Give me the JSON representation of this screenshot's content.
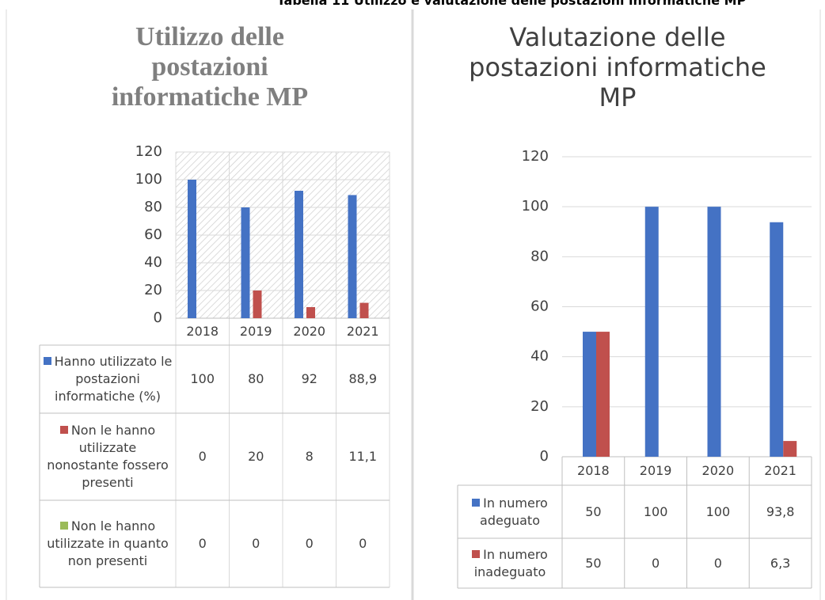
{
  "caption": "Tabella 11 Utilizzo e valutazione delle postazioni informatiche MP",
  "chart_data": [
    {
      "type": "bar",
      "title": "Utilizzo delle postazioni informatiche MP",
      "categories": [
        "2018",
        "2019",
        "2020",
        "2021"
      ],
      "series": [
        {
          "name": "Hanno utilizzato le postazioni informatiche (%)",
          "color": "#4472c4",
          "values": [
            100,
            80,
            92,
            88.9
          ],
          "value_labels": [
            "100",
            "80",
            "92",
            "88,9"
          ]
        },
        {
          "name": "Non le hanno utilizzate nonostante fossero presenti",
          "color": "#c0504d",
          "values": [
            0,
            20,
            8,
            11.1
          ],
          "value_labels": [
            "0",
            "20",
            "8",
            "11,1"
          ]
        },
        {
          "name": "Non le hanno utilizzate in quanto non presenti",
          "color": "#9bbb59",
          "values": [
            0,
            0,
            0,
            0
          ]
        }
      ],
      "ylim": [
        0,
        120
      ],
      "yticks": [
        0,
        20,
        40,
        60,
        80,
        100,
        120
      ],
      "grid": true
    },
    {
      "type": "bar",
      "title": "Valutazione delle postazioni informatiche MP",
      "categories": [
        "2018",
        "2019",
        "2020",
        "2021"
      ],
      "series": [
        {
          "name": "In numero adeguato",
          "color": "#4472c4",
          "values": [
            50,
            100,
            100,
            93.8
          ],
          "value_labels": [
            "50",
            "100",
            "100",
            "93,8"
          ]
        },
        {
          "name": "In numero inadeguato",
          "color": "#c0504d",
          "values": [
            50,
            0,
            0,
            6.3
          ],
          "value_labels": [
            "50",
            "0",
            "0",
            "6,3"
          ]
        }
      ],
      "ylim": [
        0,
        120
      ],
      "yticks": [
        0,
        20,
        40,
        60,
        80,
        100,
        120
      ],
      "grid": true
    }
  ]
}
